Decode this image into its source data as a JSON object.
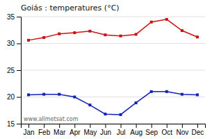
{
  "chart_data": {
    "type": "line",
    "title": "Goiás : temperatures (°C)",
    "categories": [
      "Jan",
      "Feb",
      "Mar",
      "Apr",
      "May",
      "Jun",
      "Jul",
      "Aug",
      "Sep",
      "Oct",
      "Nov",
      "Dec"
    ],
    "series": [
      {
        "color": "#cc1111",
        "marker": "square",
        "values": [
          30.6,
          31.1,
          31.8,
          32.0,
          32.3,
          31.6,
          31.4,
          31.7,
          34.0,
          34.5,
          32.4,
          31.2
        ]
      },
      {
        "color": "#1122bb",
        "marker": "square",
        "values": [
          20.4,
          20.5,
          20.5,
          20.0,
          18.5,
          16.8,
          16.7,
          18.9,
          21.0,
          21.0,
          20.5,
          20.4
        ]
      }
    ],
    "ylim": [
      15,
      35
    ],
    "yticks": [
      15,
      20,
      25,
      30,
      35
    ],
    "grid": true,
    "annotations": [
      "www.allmetsat.com"
    ]
  }
}
